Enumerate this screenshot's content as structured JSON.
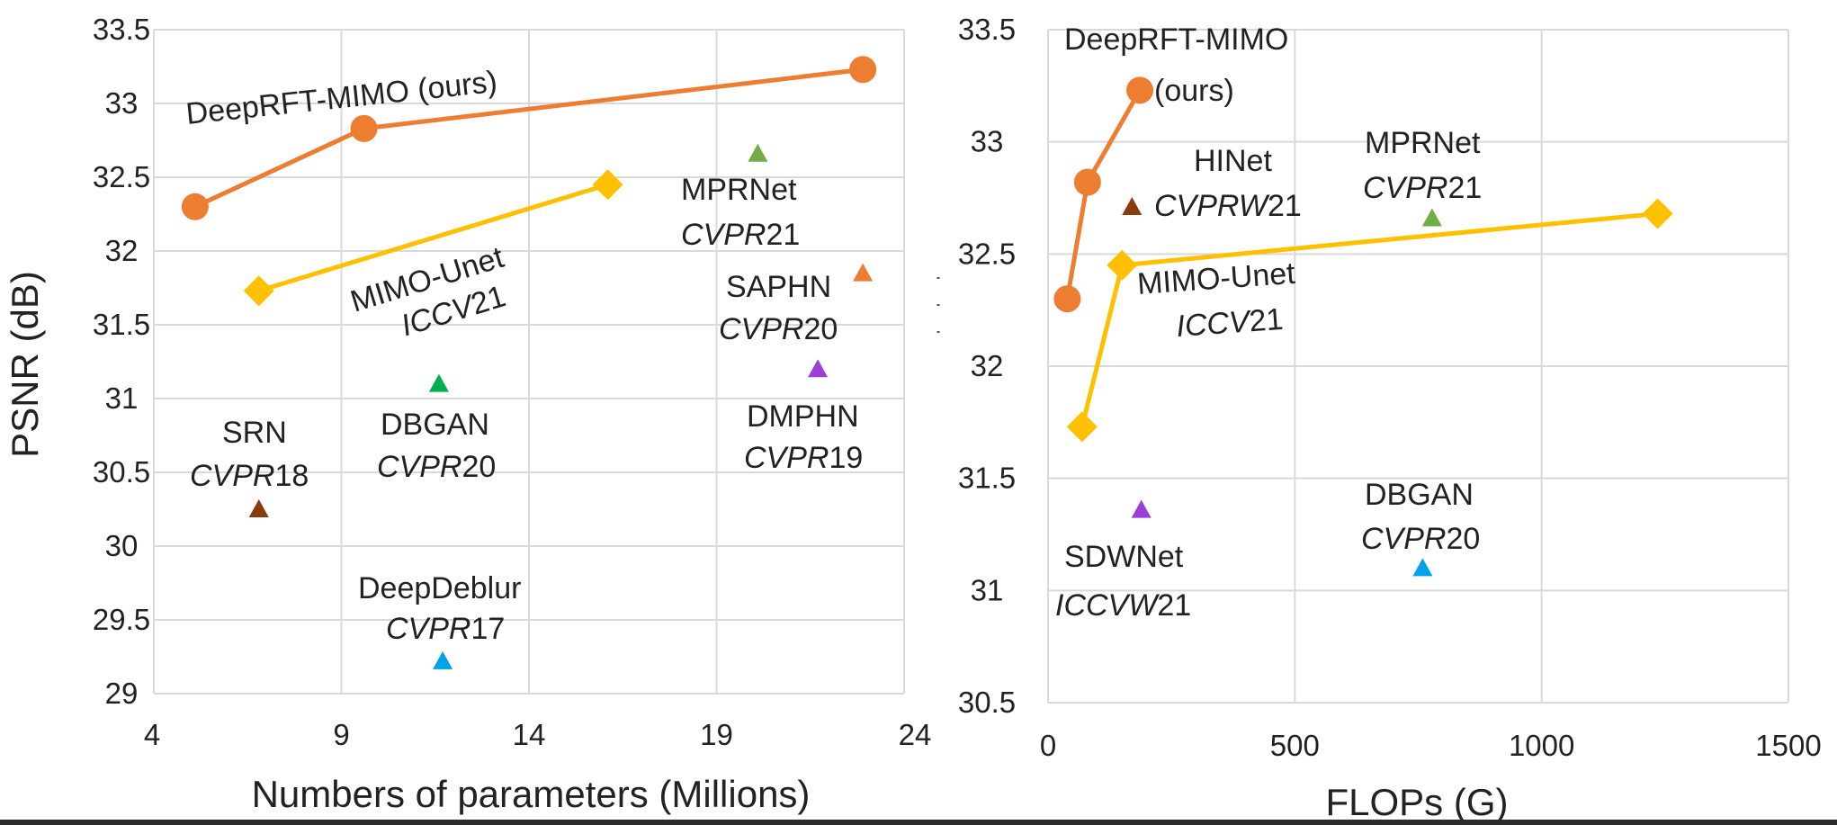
{
  "chart_data": [
    {
      "type": "scatter",
      "xlabel": "Numbers of parameters (Millions)",
      "ylabel": "PSNR (dB)",
      "xlim": [
        4,
        24
      ],
      "ylim": [
        29,
        33.5
      ],
      "xticks": [
        "4",
        "9",
        "14",
        "19",
        "24"
      ],
      "yticks": [
        "29",
        "29.5",
        "30",
        "30.5",
        "31",
        "31.5",
        "32",
        "32.5",
        "33",
        "33.5"
      ],
      "grid": true,
      "series": [
        {
          "name": "DeepRFT-MIMO (ours)",
          "marker": "circle",
          "line": true,
          "color": "#ED7D31",
          "points": [
            {
              "x": 5.1,
              "y": 32.3
            },
            {
              "x": 9.6,
              "y": 32.83
            },
            {
              "x": 22.9,
              "y": 33.23
            }
          ]
        },
        {
          "name": "MIMO-Unet ICCV21",
          "marker": "diamond",
          "line": true,
          "color": "#FFC000",
          "points": [
            {
              "x": 6.8,
              "y": 31.73
            },
            {
              "x": 16.1,
              "y": 32.45
            }
          ]
        }
      ],
      "points": [
        {
          "x": 20.1,
          "y": 32.66,
          "color": "#70AD47",
          "label": [
            "MPRNet",
            "CVPR21"
          ]
        },
        {
          "x": 22.9,
          "y": 31.85,
          "color": "#ED7D31",
          "label": [
            "SAPHN",
            "CVPR20"
          ]
        },
        {
          "x": 21.7,
          "y": 31.2,
          "color": "#9B3FD8",
          "label": [
            "DMPHN",
            "CVPR19"
          ]
        },
        {
          "x": 11.6,
          "y": 31.1,
          "color": "#00B050",
          "label": [
            "DBGAN",
            "CVPR20"
          ]
        },
        {
          "x": 6.8,
          "y": 30.25,
          "color": "#8B3A0E",
          "label": [
            "SRN",
            "CVPR18"
          ]
        },
        {
          "x": 11.7,
          "y": 29.22,
          "color": "#00A2E8",
          "label": [
            "DeepDeblur",
            "CVPR17"
          ]
        }
      ],
      "annotations": [
        {
          "lines": [
            "DeepRFT-MIMO (ours)"
          ],
          "italic_part": null
        },
        {
          "lines": [
            "MIMO-Unet",
            "ICCV21"
          ]
        },
        {
          "lines": [
            "MPRNet",
            "CVPR21"
          ]
        },
        {
          "lines": [
            "SAPHN",
            "CVPR20"
          ]
        },
        {
          "lines": [
            "DMPHN",
            "CVPR19"
          ]
        },
        {
          "lines": [
            "DBGAN",
            "CVPR20"
          ]
        },
        {
          "lines": [
            "SRN",
            "CVPR18"
          ]
        },
        {
          "lines": [
            "DeepDeblur",
            "CVPR17"
          ]
        }
      ]
    },
    {
      "type": "scatter",
      "xlabel": "FLOPs (G)",
      "ylabel": "",
      "xlim": [
        0,
        1500
      ],
      "ylim": [
        30.5,
        33.5
      ],
      "xticks": [
        "0",
        "500",
        "1000",
        "1500"
      ],
      "yticks": [
        "30.5",
        "31",
        "31.5",
        "32",
        "32.5",
        "33",
        "33.5"
      ],
      "grid": true,
      "series": [
        {
          "name": "DeepRFT-MIMO (ours)",
          "marker": "circle",
          "line": true,
          "color": "#ED7D31",
          "points": [
            {
              "x": 39,
              "y": 32.3
            },
            {
              "x": 80,
              "y": 32.82
            },
            {
              "x": 186,
              "y": 33.23
            }
          ]
        },
        {
          "name": "MIMO-Unet ICCV21",
          "marker": "diamond",
          "line": true,
          "color": "#FFC000",
          "points": [
            {
              "x": 69,
              "y": 31.73
            },
            {
              "x": 150,
              "y": 32.45
            },
            {
              "x": 1235,
              "y": 32.68
            }
          ]
        }
      ],
      "points": [
        {
          "x": 170,
          "y": 32.71,
          "color": "#8B3A0E",
          "label": [
            "HINet",
            "CVPRW21"
          ]
        },
        {
          "x": 778,
          "y": 32.66,
          "color": "#70AD47",
          "label": [
            "MPRNet",
            "CVPR21"
          ]
        },
        {
          "x": 189,
          "y": 31.36,
          "color": "#9B3FD8",
          "label": [
            "SDWNet",
            "ICCVW21"
          ]
        },
        {
          "x": 759,
          "y": 31.1,
          "color": "#00A2E8",
          "label": [
            "DBGAN",
            "CVPR20"
          ]
        }
      ],
      "annotations": [
        {
          "lines": [
            "DeepRFT-MIMO",
            "(ours)"
          ]
        },
        {
          "lines": [
            "HINet",
            "CVPRW21"
          ]
        },
        {
          "lines": [
            "MPRNet",
            "CVPR21"
          ]
        },
        {
          "lines": [
            "MIMO-Unet",
            "ICCV21"
          ]
        },
        {
          "lines": [
            "SDWNet",
            "ICCVW21"
          ]
        },
        {
          "lines": [
            "DBGAN",
            "CVPR20"
          ]
        }
      ]
    }
  ],
  "text": {
    "l_ours": "DeepRFT-MIMO (ours)",
    "l_mimo_a": "MIMO-Unet",
    "l_mimo_b_it": "ICCV",
    "l_mimo_b": "21",
    "l_mpr_a": "MPRNet",
    "l_mpr_b_it": "CVPR",
    "l_mpr_b": "21",
    "l_saphn_a": "SAPHN",
    "l_saphn_b_it": "CVPR",
    "l_saphn_b": "20",
    "l_dmphn_a": "DMPHN",
    "l_dmphn_b_it": "CVPR",
    "l_dmphn_b": "19",
    "l_dbgan_a": "DBGAN",
    "l_dbgan_b_it": "CVPR",
    "l_dbgan_b": "20",
    "l_srn_a": "SRN",
    "l_srn_b_it": "CVPR",
    "l_srn_b": "18",
    "l_dd_a": "DeepDeblur",
    "l_dd_b_it": "CVPR",
    "l_dd_b": "17",
    "r_ours_a": "DeepRFT-MIMO",
    "r_ours_b": "(ours)",
    "r_hinet_a": "HINet",
    "r_hinet_b_it": "CVPRW",
    "r_hinet_b": "21",
    "r_mpr_a": "MPRNet",
    "r_mpr_b_it": "CVPR",
    "r_mpr_b": "21",
    "r_mimo_a": "MIMO-Unet",
    "r_mimo_b_it": "ICCV",
    "r_mimo_b": "21",
    "r_sdw_a": "SDWNet",
    "r_sdw_b_it": "ICCVW",
    "r_sdw_b": "21",
    "r_dbgan_a": "DBGAN",
    "r_dbgan_b_it": "CVPR",
    "r_dbgan_b": "20"
  }
}
